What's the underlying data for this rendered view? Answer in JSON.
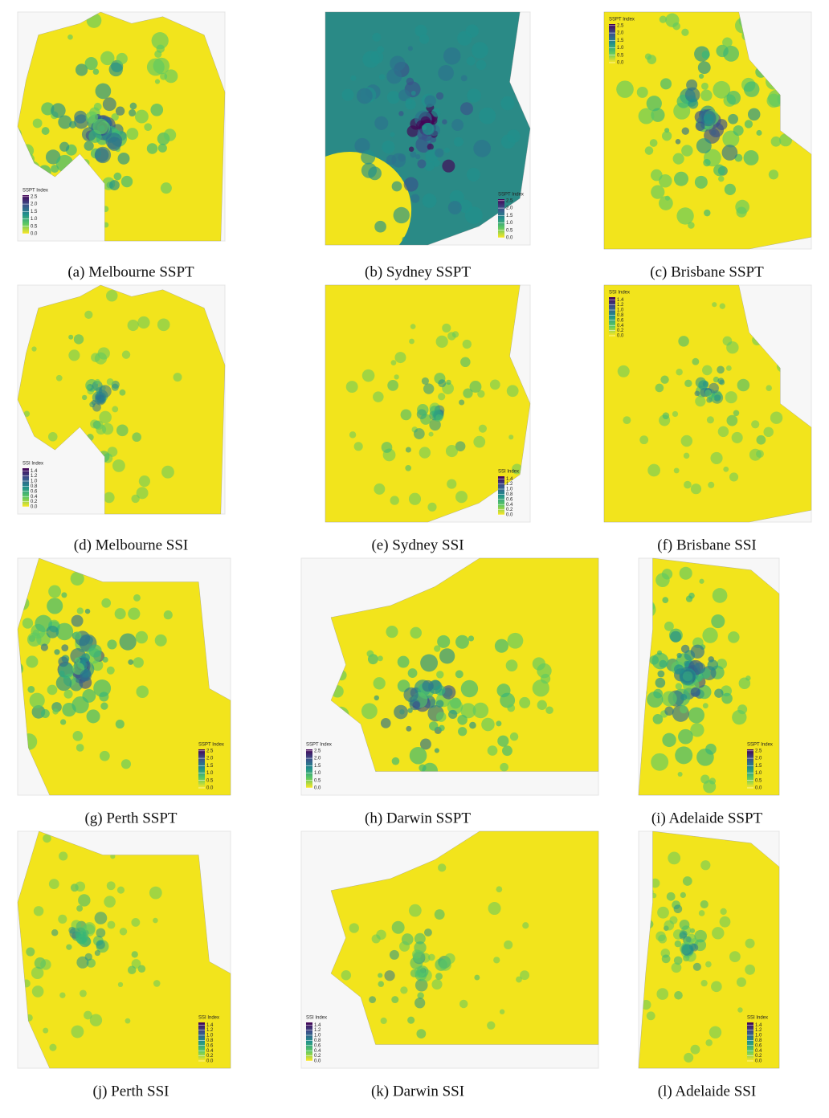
{
  "panels": [
    {
      "caption": "(a) Melbourne SSPT",
      "legend": {
        "title": "SSPT Index",
        "corner": "bottom-left",
        "lim": [
          0,
          2.6
        ],
        "ticks": [
          {
            "value": 0,
            "label": "0.0"
          },
          0.5,
          {
            "value": 1,
            "label": "1.0"
          },
          1.5,
          {
            "value": 2,
            "label": "2.0"
          },
          2.5
        ]
      }
    },
    {
      "caption": "(b) Sydney SSPT",
      "legend": {
        "title": "SSPT Index",
        "corner": "bottom-right",
        "lim": [
          0,
          2.6
        ],
        "ticks": [
          {
            "value": 0,
            "label": "0.0"
          },
          0.5,
          {
            "value": 1,
            "label": "1.0"
          },
          1.5,
          {
            "value": 2,
            "label": "2.0"
          },
          2.5
        ]
      }
    },
    {
      "caption": "(c) Brisbane SSPT",
      "legend": {
        "title": "SSPT Index",
        "corner": "top-left",
        "lim": [
          0,
          2.6
        ],
        "ticks": [
          {
            "value": 0,
            "label": "0.0"
          },
          0.5,
          {
            "value": 1,
            "label": "1.0"
          },
          1.5,
          {
            "value": 2,
            "label": "2.0"
          },
          2.5
        ]
      }
    },
    {
      "caption": "(d) Melbourne SSI",
      "legend": {
        "title": "SSI Index",
        "corner": "bottom-left",
        "lim": [
          0,
          1.5
        ],
        "ticks": [
          {
            "value": 0,
            "label": "0.0"
          },
          0.2,
          0.4,
          0.6,
          0.8,
          {
            "value": 1,
            "label": "1.0"
          },
          1.2,
          1.4
        ]
      }
    },
    {
      "caption": "(e) Sydney SSI",
      "legend": {
        "title": "SSI Index",
        "corner": "bottom-right",
        "lim": [
          0,
          1.5
        ],
        "ticks": [
          {
            "value": 0,
            "label": "0.0"
          },
          0.2,
          0.4,
          0.6,
          0.8,
          {
            "value": 1,
            "label": "1.0"
          },
          1.2,
          1.4
        ]
      }
    },
    {
      "caption": "(f) Brisbane SSI",
      "legend": {
        "title": "SSI Index",
        "corner": "top-left",
        "lim": [
          0,
          1.5
        ],
        "ticks": [
          {
            "value": 0,
            "label": "0.0"
          },
          0.2,
          0.4,
          0.6,
          0.8,
          {
            "value": 1,
            "label": "1.0"
          },
          1.2,
          1.4
        ]
      }
    },
    {
      "caption": "(g) Perth SSPT",
      "legend": {
        "title": "SSPT Index",
        "corner": "bottom-right",
        "lim": [
          0,
          2.6
        ],
        "ticks": [
          {
            "value": 0,
            "label": "0.0"
          },
          0.5,
          {
            "value": 1,
            "label": "1.0"
          },
          1.5,
          {
            "value": 2,
            "label": "2.0"
          },
          2.5
        ]
      }
    },
    {
      "caption": "(h) Darwin SSPT",
      "legend": {
        "title": "SSPT Index",
        "corner": "bottom-left",
        "lim": [
          0,
          2.6
        ],
        "ticks": [
          {
            "value": 0,
            "label": "0.0"
          },
          0.5,
          {
            "value": 1,
            "label": "1.0"
          },
          1.5,
          {
            "value": 2,
            "label": "2.0"
          },
          2.5
        ]
      }
    },
    {
      "caption": "(i) Adelaide SSPT",
      "legend": {
        "title": "SSPT Index",
        "corner": "bottom-right",
        "lim": [
          0,
          2.6
        ],
        "ticks": [
          {
            "value": 0,
            "label": "0.0"
          },
          0.5,
          {
            "value": 1,
            "label": "1.0"
          },
          1.5,
          {
            "value": 2,
            "label": "2.0"
          },
          2.5
        ]
      }
    },
    {
      "caption": "(j) Perth SSI",
      "legend": {
        "title": "SSI Index",
        "corner": "bottom-right",
        "lim": [
          0,
          1.5
        ],
        "ticks": [
          {
            "value": 0,
            "label": "0.0"
          },
          0.2,
          0.4,
          0.6,
          0.8,
          {
            "value": 1,
            "label": "1.0"
          },
          1.2,
          1.4
        ]
      }
    },
    {
      "caption": "(k) Darwin SSI",
      "legend": {
        "title": "SSI Index",
        "corner": "bottom-left",
        "lim": [
          0,
          1.5
        ],
        "ticks": [
          {
            "value": 0,
            "label": "0.0"
          },
          0.2,
          0.4,
          0.6,
          0.8,
          {
            "value": 1,
            "label": "1.0"
          },
          1.2,
          1.4
        ]
      }
    },
    {
      "caption": "(l) Adelaide SSI",
      "legend": {
        "title": "SSI Index",
        "corner": "bottom-right",
        "lim": [
          0,
          1.5
        ],
        "ticks": [
          {
            "value": 0,
            "label": "0.0"
          },
          0.2,
          0.4,
          0.6,
          0.8,
          {
            "value": 1,
            "label": "1.0"
          },
          1.2,
          1.4
        ]
      }
    }
  ]
}
